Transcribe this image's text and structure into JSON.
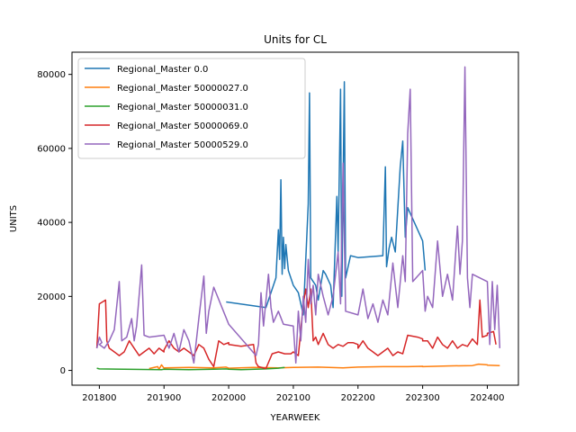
{
  "chart_data": {
    "type": "line",
    "title": "Units for CL",
    "xlabel": "YEARWEEK",
    "ylabel": "UNITS",
    "xlim": [
      201730,
      202425
    ],
    "ylim": [
      -4000,
      86000
    ],
    "x_ticks": [
      201800,
      201900,
      202000,
      202100,
      202200,
      202300,
      202400
    ],
    "y_ticks": [
      0,
      20000,
      40000,
      60000,
      80000
    ],
    "grid": false,
    "legend_position": "top-left",
    "series": [
      {
        "name": "Regional_Master 0.0",
        "color": "#1f77b4",
        "points": [
          [
            201950,
            18500
          ],
          [
            202030,
            17000
          ],
          [
            202038,
            25000
          ],
          [
            202040,
            38000
          ],
          [
            202041,
            30000
          ],
          [
            202042,
            51500
          ],
          [
            202043,
            26000
          ],
          [
            202044,
            36000
          ],
          [
            202045,
            27500
          ],
          [
            202046,
            34000
          ],
          [
            202048,
            27000
          ],
          [
            202100,
            23000
          ],
          [
            202104,
            21000
          ],
          [
            202108,
            15000
          ],
          [
            202112,
            45000
          ],
          [
            202113,
            75000
          ],
          [
            202114,
            25000
          ],
          [
            202118,
            23000
          ],
          [
            202120,
            19000
          ],
          [
            202124,
            27000
          ],
          [
            202126,
            26000
          ],
          [
            202130,
            23000
          ],
          [
            202132,
            17000
          ],
          [
            202135,
            47000
          ],
          [
            202136,
            32000
          ],
          [
            202138,
            76000
          ],
          [
            202139,
            20000
          ],
          [
            202140,
            50000
          ],
          [
            202141,
            78000
          ],
          [
            202142,
            25000
          ],
          [
            202146,
            31000
          ],
          [
            202200,
            30500
          ],
          [
            202220,
            31000
          ],
          [
            202222,
            55000
          ],
          [
            202223,
            28000
          ],
          [
            202225,
            33000
          ],
          [
            202227,
            36000
          ],
          [
            202230,
            32000
          ],
          [
            202234,
            55000
          ],
          [
            202236,
            62000
          ],
          [
            202238,
            36000
          ],
          [
            202240,
            44000
          ],
          [
            202300,
            35000
          ],
          [
            202302,
            27000
          ]
        ]
      },
      {
        "name": "Regional_Master 50000027.0",
        "color": "#ff7f0e",
        "points": [
          [
            201840,
            500
          ],
          [
            201847,
            1000
          ],
          [
            201848,
            300
          ],
          [
            201850,
            1500
          ],
          [
            201852,
            600
          ],
          [
            201900,
            700
          ],
          [
            201920,
            800
          ],
          [
            201940,
            700
          ],
          [
            201950,
            900
          ],
          [
            202000,
            600
          ],
          [
            202020,
            800
          ],
          [
            202040,
            700
          ],
          [
            202052,
            800
          ],
          [
            202100,
            800
          ],
          [
            202120,
            900
          ],
          [
            202140,
            700
          ],
          [
            202152,
            900
          ],
          [
            202200,
            900
          ],
          [
            202220,
            1000
          ],
          [
            202240,
            1000
          ],
          [
            202252,
            1100
          ],
          [
            202300,
            1000
          ],
          [
            202320,
            1200
          ],
          [
            202340,
            1300
          ],
          [
            202345,
            1700
          ],
          [
            202352,
            1500
          ],
          [
            202400,
            1400
          ],
          [
            202410,
            1300
          ]
        ]
      },
      {
        "name": "Regional_Master 50000031.0",
        "color": "#2ca02c",
        "points": [
          [
            201750,
            600
          ],
          [
            201800,
            400
          ],
          [
            201820,
            300
          ],
          [
            201850,
            200
          ],
          [
            201900,
            300
          ],
          [
            201920,
            200
          ],
          [
            201940,
            300
          ],
          [
            201950,
            400
          ],
          [
            202000,
            300
          ],
          [
            202010,
            200
          ],
          [
            202030,
            400
          ],
          [
            202040,
            600
          ],
          [
            202045,
            800
          ]
        ]
      },
      {
        "name": "Regional_Master 50000069.0",
        "color": "#d62728",
        "points": [
          [
            201750,
            6000
          ],
          [
            201800,
            18000
          ],
          [
            201805,
            19000
          ],
          [
            201806,
            8000
          ],
          [
            201808,
            6000
          ],
          [
            201812,
            5000
          ],
          [
            201816,
            4000
          ],
          [
            201820,
            5000
          ],
          [
            201824,
            8000
          ],
          [
            201828,
            6000
          ],
          [
            201832,
            4000
          ],
          [
            201836,
            5000
          ],
          [
            201840,
            6000
          ],
          [
            201844,
            4500
          ],
          [
            201848,
            6000
          ],
          [
            201852,
            5000
          ],
          [
            201900,
            5500
          ],
          [
            201904,
            8000
          ],
          [
            201908,
            6000
          ],
          [
            201912,
            5000
          ],
          [
            201916,
            6000
          ],
          [
            201920,
            5000
          ],
          [
            201924,
            4000
          ],
          [
            201928,
            7000
          ],
          [
            201932,
            6000
          ],
          [
            201936,
            3000
          ],
          [
            201940,
            1000
          ],
          [
            201944,
            8000
          ],
          [
            201948,
            7000
          ],
          [
            201952,
            7500
          ],
          [
            202000,
            7000
          ],
          [
            202010,
            6500
          ],
          [
            202020,
            7000
          ],
          [
            202022,
            2000
          ],
          [
            202024,
            1000
          ],
          [
            202030,
            500
          ],
          [
            202035,
            4500
          ],
          [
            202040,
            5000
          ],
          [
            202045,
            4500
          ],
          [
            202050,
            4500
          ],
          [
            202100,
            5000
          ],
          [
            202104,
            4000
          ],
          [
            202108,
            18000
          ],
          [
            202110,
            22000
          ],
          [
            202112,
            17000
          ],
          [
            202114,
            22000
          ],
          [
            202116,
            8000
          ],
          [
            202118,
            9000
          ],
          [
            202120,
            7000
          ],
          [
            202124,
            10000
          ],
          [
            202128,
            7000
          ],
          [
            202132,
            6000
          ],
          [
            202136,
            7000
          ],
          [
            202140,
            6500
          ],
          [
            202144,
            7500
          ],
          [
            202148,
            7500
          ],
          [
            202152,
            7000
          ],
          [
            202200,
            6000
          ],
          [
            202204,
            8000
          ],
          [
            202208,
            6000
          ],
          [
            202212,
            5000
          ],
          [
            202216,
            4000
          ],
          [
            202220,
            5000
          ],
          [
            202224,
            6000
          ],
          [
            202228,
            4000
          ],
          [
            202232,
            5000
          ],
          [
            202236,
            4500
          ],
          [
            202240,
            9500
          ],
          [
            202248,
            9000
          ],
          [
            202252,
            8500
          ],
          [
            202300,
            8000
          ],
          [
            202304,
            8000
          ],
          [
            202308,
            6000
          ],
          [
            202312,
            9000
          ],
          [
            202316,
            7000
          ],
          [
            202320,
            6000
          ],
          [
            202324,
            8000
          ],
          [
            202328,
            6000
          ],
          [
            202332,
            7000
          ],
          [
            202336,
            6500
          ],
          [
            202340,
            8500
          ],
          [
            202344,
            7000
          ],
          [
            202346,
            19000
          ],
          [
            202348,
            9000
          ],
          [
            202352,
            9500
          ],
          [
            202400,
            10000
          ],
          [
            202405,
            10500
          ],
          [
            202407,
            7000
          ]
        ]
      },
      {
        "name": "Regional_Master 50000529.0",
        "color": "#9467bd",
        "points": [
          [
            201750,
            6000
          ],
          [
            201752,
            9000
          ],
          [
            201754,
            7500
          ],
          [
            201800,
            7000
          ],
          [
            201804,
            6000
          ],
          [
            201808,
            8000
          ],
          [
            201812,
            11000
          ],
          [
            201816,
            24000
          ],
          [
            201818,
            8000
          ],
          [
            201822,
            9000
          ],
          [
            201826,
            14000
          ],
          [
            201828,
            8000
          ],
          [
            201830,
            12000
          ],
          [
            201834,
            28500
          ],
          [
            201836,
            9500
          ],
          [
            201840,
            9000
          ],
          [
            201900,
            9500
          ],
          [
            201904,
            6000
          ],
          [
            201908,
            10000
          ],
          [
            201912,
            5000
          ],
          [
            201916,
            11000
          ],
          [
            201920,
            8000
          ],
          [
            201924,
            2000
          ],
          [
            201928,
            14000
          ],
          [
            201932,
            25500
          ],
          [
            201934,
            10000
          ],
          [
            201936,
            16000
          ],
          [
            201940,
            22500
          ],
          [
            202000,
            12500
          ],
          [
            202022,
            4000
          ],
          [
            202024,
            7000
          ],
          [
            202026,
            21000
          ],
          [
            202028,
            12000
          ],
          [
            202032,
            26000
          ],
          [
            202034,
            17000
          ],
          [
            202036,
            13000
          ],
          [
            202040,
            16000
          ],
          [
            202044,
            12500
          ],
          [
            202052,
            12000
          ],
          [
            202100,
            12000
          ],
          [
            202102,
            2000
          ],
          [
            202104,
            16000
          ],
          [
            202106,
            8000
          ],
          [
            202108,
            20000
          ],
          [
            202110,
            13000
          ],
          [
            202112,
            30000
          ],
          [
            202114,
            18000
          ],
          [
            202116,
            23000
          ],
          [
            202118,
            15000
          ],
          [
            202120,
            26000
          ],
          [
            202124,
            20000
          ],
          [
            202128,
            15000
          ],
          [
            202132,
            20000
          ],
          [
            202136,
            32000
          ],
          [
            202138,
            18000
          ],
          [
            202140,
            56000
          ],
          [
            202142,
            16000
          ],
          [
            202200,
            15000
          ],
          [
            202204,
            22000
          ],
          [
            202208,
            14000
          ],
          [
            202212,
            18000
          ],
          [
            202216,
            13000
          ],
          [
            202220,
            19000
          ],
          [
            202224,
            15000
          ],
          [
            202228,
            29000
          ],
          [
            202232,
            17000
          ],
          [
            202236,
            31000
          ],
          [
            202238,
            24000
          ],
          [
            202240,
            64000
          ],
          [
            202242,
            76000
          ],
          [
            202244,
            24000
          ],
          [
            202300,
            27000
          ],
          [
            202302,
            16000
          ],
          [
            202304,
            20000
          ],
          [
            202308,
            17000
          ],
          [
            202312,
            35000
          ],
          [
            202316,
            20000
          ],
          [
            202320,
            26000
          ],
          [
            202324,
            19000
          ],
          [
            202328,
            39000
          ],
          [
            202330,
            26000
          ],
          [
            202332,
            35000
          ],
          [
            202334,
            82000
          ],
          [
            202336,
            25000
          ],
          [
            202338,
            17000
          ],
          [
            202340,
            26000
          ],
          [
            202400,
            24000
          ],
          [
            202402,
            7000
          ],
          [
            202404,
            24000
          ],
          [
            202406,
            11000
          ],
          [
            202408,
            23000
          ],
          [
            202410,
            6000
          ]
        ]
      }
    ]
  }
}
